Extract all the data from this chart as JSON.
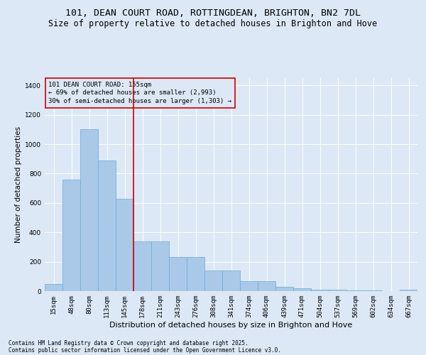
{
  "title_line1": "101, DEAN COURT ROAD, ROTTINGDEAN, BRIGHTON, BN2 7DL",
  "title_line2": "Size of property relative to detached houses in Brighton and Hove",
  "xlabel": "Distribution of detached houses by size in Brighton and Hove",
  "ylabel": "Number of detached properties",
  "categories": [
    "15sqm",
    "48sqm",
    "80sqm",
    "113sqm",
    "145sqm",
    "178sqm",
    "211sqm",
    "243sqm",
    "276sqm",
    "308sqm",
    "341sqm",
    "374sqm",
    "406sqm",
    "439sqm",
    "471sqm",
    "504sqm",
    "537sqm",
    "569sqm",
    "602sqm",
    "634sqm",
    "667sqm"
  ],
  "values": [
    50,
    760,
    1100,
    890,
    630,
    340,
    340,
    230,
    230,
    140,
    140,
    70,
    70,
    30,
    20,
    12,
    12,
    4,
    4,
    2,
    12
  ],
  "bar_color": "#aac9e8",
  "bar_edge_color": "#6aaad4",
  "vline_color": "#cc0000",
  "vline_index": 4,
  "annotation_title": "101 DEAN COURT ROAD: 155sqm",
  "annotation_line2": "← 69% of detached houses are smaller (2,993)",
  "annotation_line3": "30% of semi-detached houses are larger (1,303) →",
  "annotation_box_color": "#cc0000",
  "ylim_max": 1450,
  "yticks": [
    0,
    200,
    400,
    600,
    800,
    1000,
    1200,
    1400
  ],
  "footer1": "Contains HM Land Registry data © Crown copyright and database right 2025.",
  "footer2": "Contains public sector information licensed under the Open Government Licence v3.0.",
  "bg_color": "#dce8f5",
  "grid_color": "#ffffff",
  "title_fontsize": 9.5,
  "subtitle_fontsize": 8.5,
  "ylabel_fontsize": 7.5,
  "xlabel_fontsize": 8,
  "tick_fontsize": 6.5,
  "ann_fontsize": 6.5,
  "footer_fontsize": 5.5
}
